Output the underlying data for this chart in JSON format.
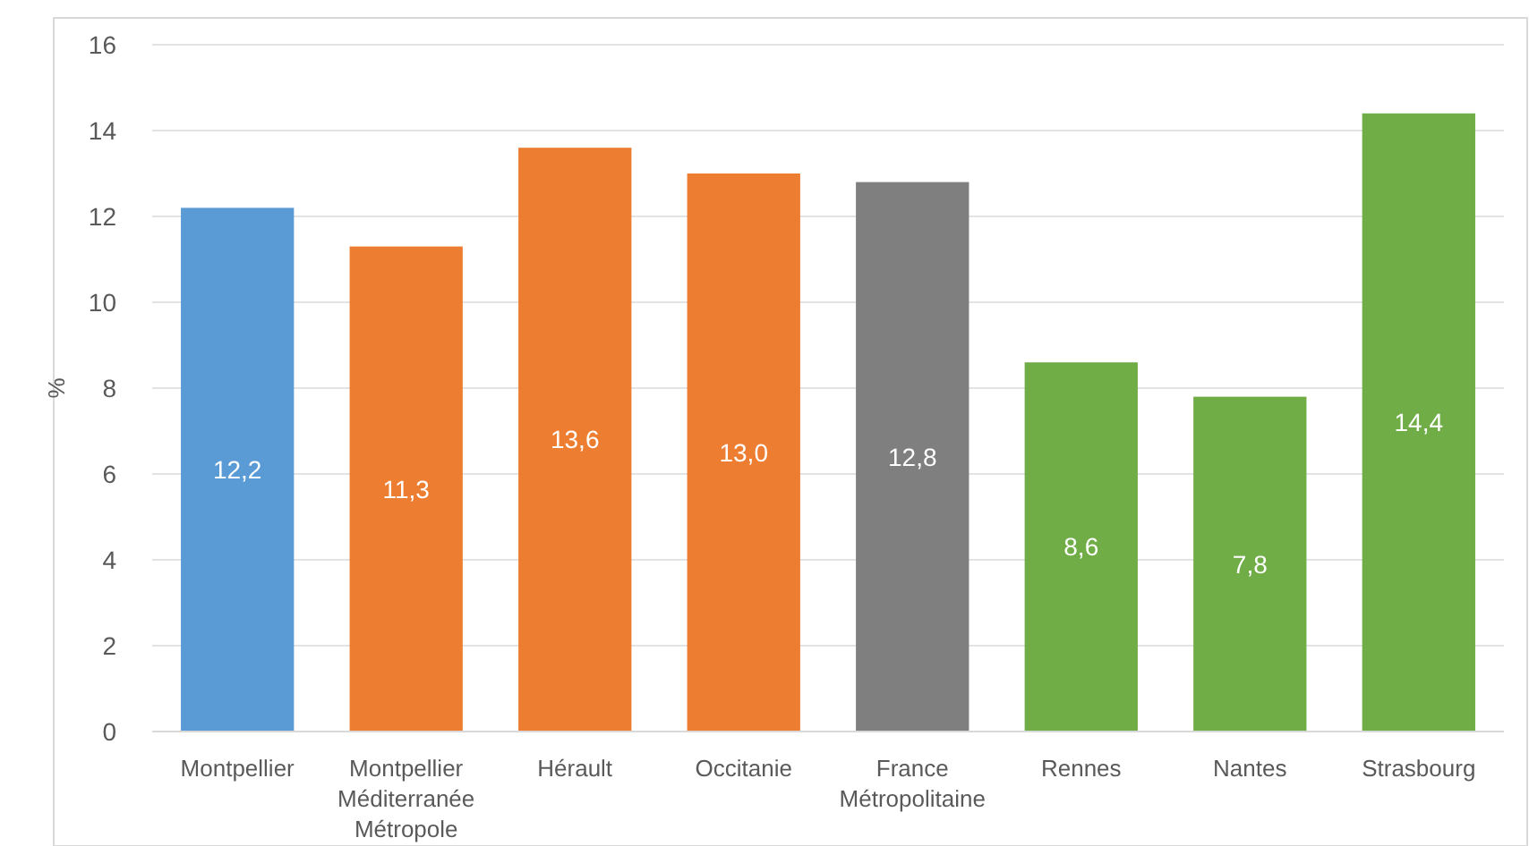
{
  "chart_data": {
    "type": "bar",
    "ylabel": "%",
    "categories": [
      "Montpellier",
      "Montpellier Méditerranée Métropole",
      "Hérault",
      "Occitanie",
      "France Métropolitaine",
      "Rennes",
      "Nantes",
      "Strasbourg"
    ],
    "values": [
      12.2,
      11.3,
      13.6,
      13.0,
      12.8,
      8.6,
      7.8,
      14.4
    ],
    "value_labels": [
      "12,2",
      "11,3",
      "13,6",
      "13,0",
      "12,8",
      "8,6",
      "7,8",
      "14,4"
    ],
    "colors": [
      "#5b9bd5",
      "#ed7d31",
      "#ed7d31",
      "#ed7d31",
      "#7f7f7f",
      "#70ad47",
      "#70ad47",
      "#70ad47"
    ],
    "ylim": [
      0,
      16
    ],
    "yticks": [
      0,
      2,
      4,
      6,
      8,
      10,
      12,
      14,
      16
    ],
    "grid": "y"
  }
}
